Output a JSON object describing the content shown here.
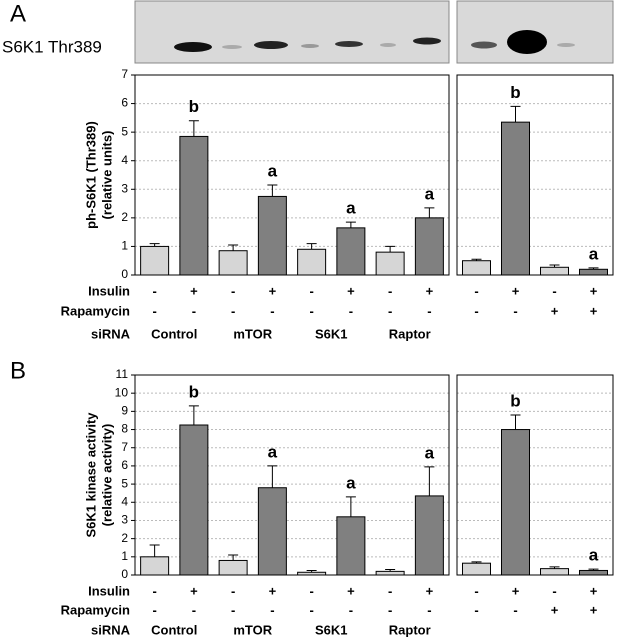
{
  "panels": [
    {
      "label": "A",
      "blot_label": "S6K1 Thr389"
    },
    {
      "label": "B"
    }
  ],
  "chart_data": [
    {
      "type": "bar",
      "ylabel": [
        "ph-S6K1 (Thr389)",
        "(relative units)"
      ],
      "ylim": [
        0,
        7
      ],
      "yticks": [
        0,
        1,
        2,
        3,
        4,
        5,
        6,
        7
      ],
      "grid": true,
      "colors": [
        "#d6d6d6",
        "#808080",
        "#d6d6d6",
        "#808080",
        "#d6d6d6",
        "#808080",
        "#d6d6d6",
        "#808080"
      ],
      "values": [
        1.0,
        4.85,
        0.85,
        2.75,
        0.9,
        1.65,
        0.8,
        2.0
      ],
      "errors": [
        0.1,
        0.55,
        0.2,
        0.4,
        0.2,
        0.2,
        0.2,
        0.35
      ],
      "annotations": [
        null,
        "b",
        null,
        "a",
        null,
        "a",
        null,
        "a"
      ],
      "rows": [
        {
          "name": "Insulin",
          "labels": [
            "-",
            "+",
            "-",
            "+",
            "-",
            "+",
            "-",
            "+"
          ]
        },
        {
          "name": "Rapamycin",
          "labels": [
            "-",
            "-",
            "-",
            "-",
            "-",
            "-",
            "-",
            "-"
          ]
        },
        {
          "name": "siRNA",
          "labels": [
            "Control",
            "mTOR",
            "S6K1",
            "Raptor"
          ]
        }
      ]
    },
    {
      "type": "bar",
      "ylim": [
        0,
        7
      ],
      "yticks": [
        0,
        1,
        2,
        3,
        4,
        5,
        6,
        7
      ],
      "grid": true,
      "colors": [
        "#d6d6d6",
        "#808080",
        "#d6d6d6",
        "#808080"
      ],
      "values": [
        0.5,
        5.35,
        0.27,
        0.2
      ],
      "errors": [
        0.05,
        0.55,
        0.08,
        0.05
      ],
      "annotations": [
        null,
        "b",
        null,
        "a"
      ],
      "rows": [
        {
          "labels": [
            "-",
            "+",
            "-",
            "+"
          ]
        },
        {
          "labels": [
            "-",
            "-",
            "+",
            "+"
          ]
        }
      ]
    },
    {
      "type": "bar",
      "ylabel": [
        "S6K1 kinase activity",
        "(relative activity)"
      ],
      "ylim": [
        0,
        11
      ],
      "yticks": [
        0,
        1,
        2,
        3,
        4,
        5,
        6,
        7,
        8,
        9,
        10,
        11
      ],
      "grid": true,
      "colors": [
        "#d6d6d6",
        "#808080",
        "#d6d6d6",
        "#808080",
        "#d6d6d6",
        "#808080",
        "#d6d6d6",
        "#808080"
      ],
      "values": [
        1.0,
        8.25,
        0.8,
        4.8,
        0.15,
        3.2,
        0.2,
        4.35
      ],
      "errors": [
        0.65,
        1.05,
        0.3,
        1.2,
        0.1,
        1.1,
        0.1,
        1.6
      ],
      "annotations": [
        null,
        "b",
        null,
        "a",
        null,
        "a",
        null,
        "a"
      ],
      "rows": [
        {
          "name": "Insulin",
          "labels": [
            "-",
            "+",
            "-",
            "+",
            "-",
            "+",
            "-",
            "+"
          ]
        },
        {
          "name": "Rapamycin",
          "labels": [
            "-",
            "-",
            "-",
            "-",
            "-",
            "-",
            "-",
            "-"
          ]
        },
        {
          "name": "siRNA",
          "labels": [
            "Control",
            "mTOR",
            "S6K1",
            "Raptor"
          ]
        }
      ]
    },
    {
      "type": "bar",
      "ylim": [
        0,
        11
      ],
      "yticks": [
        0,
        1,
        2,
        3,
        4,
        5,
        6,
        7,
        8,
        9,
        10,
        11
      ],
      "grid": true,
      "colors": [
        "#d6d6d6",
        "#808080",
        "#d6d6d6",
        "#808080"
      ],
      "values": [
        0.65,
        8.0,
        0.35,
        0.25
      ],
      "errors": [
        0.07,
        0.8,
        0.1,
        0.07
      ],
      "annotations": [
        null,
        "b",
        null,
        "a"
      ],
      "rows": [
        {
          "labels": [
            "-",
            "+",
            "-",
            "+"
          ]
        },
        {
          "labels": [
            "-",
            "-",
            "+",
            "+"
          ]
        }
      ]
    }
  ]
}
